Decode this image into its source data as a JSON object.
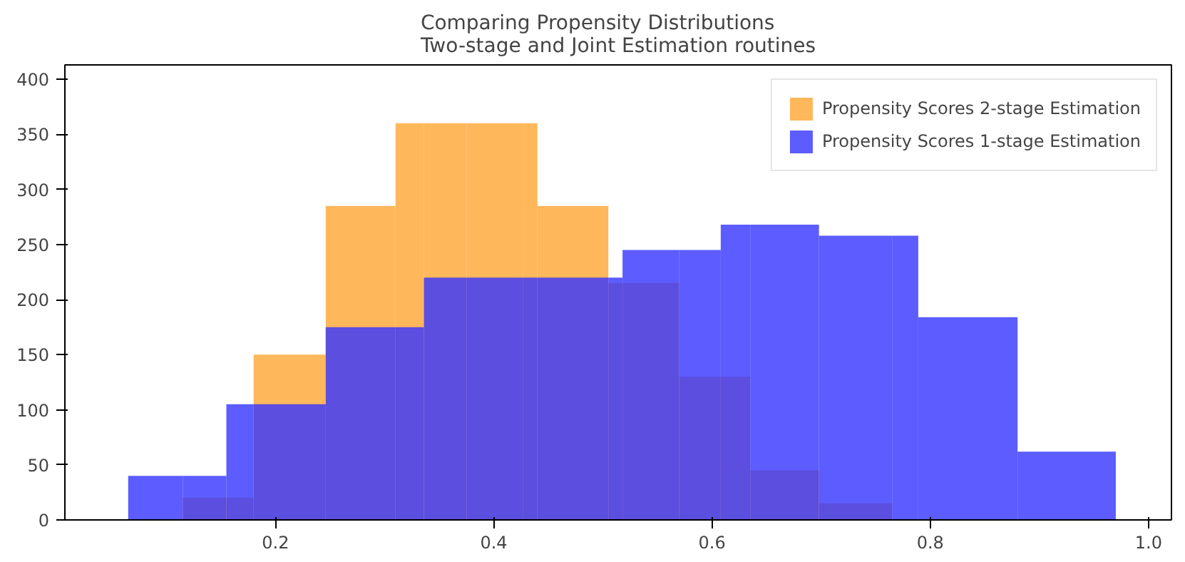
{
  "chart_data": {
    "type": "histogram",
    "title": "Comparing Propensity Distributions\nTwo-stage and Joint Estimation routines",
    "bins": [
      0.065,
      0.115,
      0.155,
      0.18,
      0.246,
      0.31,
      0.336,
      0.375,
      0.427,
      0.44,
      0.505,
      0.518,
      0.57,
      0.608,
      0.635,
      0.698,
      0.765,
      0.789,
      0.88,
      0.97
    ],
    "series": [
      {
        "name": "Propensity Scores 2-stage Estimation",
        "color": "#ffa532",
        "values": [
          null,
          20,
          20,
          150,
          285,
          360,
          360,
          360,
          360,
          285,
          215,
          215,
          130,
          130,
          45,
          15,
          null,
          null,
          null
        ]
      },
      {
        "name": "Propensity Scores 1-stage Estimation",
        "color": "#3333ff",
        "values": [
          40,
          40,
          105,
          105,
          175,
          175,
          220,
          220,
          220,
          220,
          220,
          245,
          245,
          268,
          268,
          258,
          258,
          184,
          62
        ]
      }
    ],
    "xlim": [
      0.007,
      1.021
    ],
    "ylim": [
      0,
      413
    ],
    "xticks": [
      0.2,
      0.4,
      0.6,
      0.8,
      {
        "value": 1,
        "label": "1.0"
      }
    ],
    "yticks": [
      0,
      50,
      100,
      150,
      200,
      250,
      300,
      350,
      400
    ],
    "legend": "top right"
  }
}
